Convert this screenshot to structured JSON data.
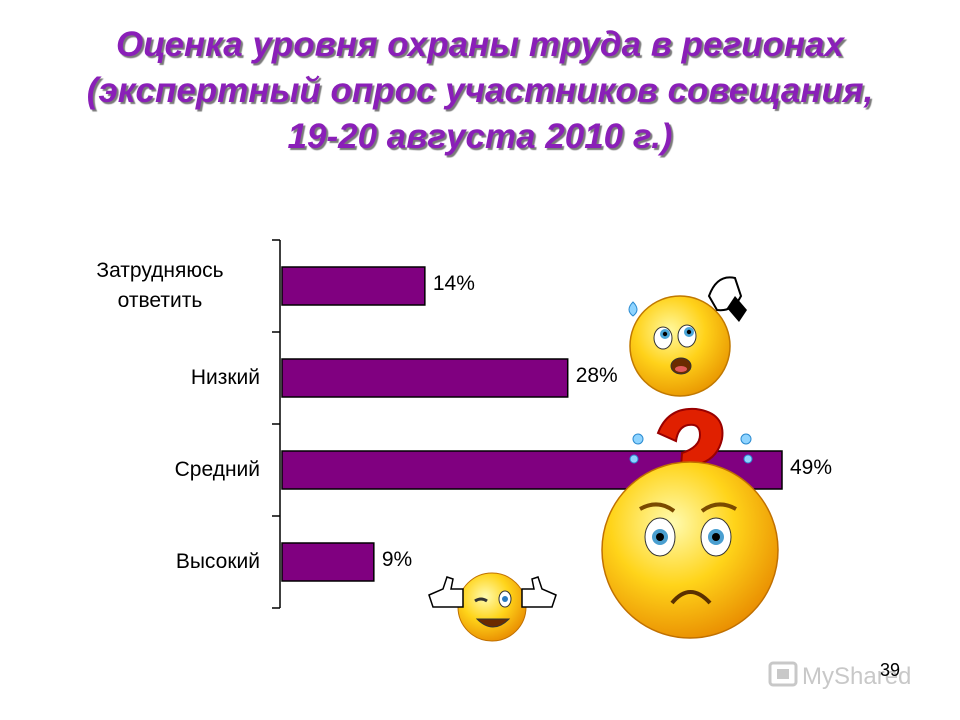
{
  "title_lines": [
    "Оценка уровня охраны труда в регионах",
    "(экспертный опрос участников совещания,",
    "19-20 августа 2010 г.)"
  ],
  "chart_data": {
    "type": "bar",
    "orientation": "horizontal",
    "title": "Оценка уровня охраны труда в регионах (экспертный опрос участников совещания, 19-20 августа 2010 г.)",
    "categories": [
      "Затрудняюсь ответить",
      "Низкий",
      "Средний",
      "Высокий"
    ],
    "category_lines": [
      [
        "Затрудняюсь",
        "ответить"
      ],
      [
        "Низкий"
      ],
      [
        "Средний"
      ],
      [
        "Высокий"
      ]
    ],
    "values": [
      14,
      28,
      49,
      9
    ],
    "value_labels": [
      "14%",
      "28%",
      "49%",
      "9%"
    ],
    "xlim": [
      0,
      50
    ],
    "bar_color": "#800080",
    "grid": false,
    "legend": "none"
  },
  "page_number": "39",
  "watermark": "MyShared",
  "icons": [
    "worried-smiley-icon",
    "confused-smiley-icon",
    "thumbs-up-smiley-icon"
  ]
}
